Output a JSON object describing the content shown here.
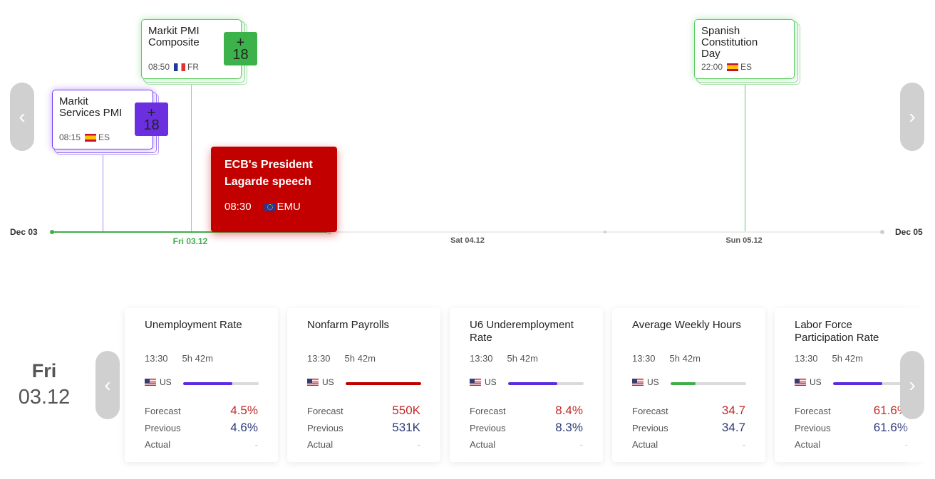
{
  "timeline": {
    "start_label": "Dec 03",
    "end_label": "Dec 05",
    "days": [
      {
        "label": "Fri 03.12",
        "active": true
      },
      {
        "label": "Sat 04.12",
        "active": false
      },
      {
        "label": "Sun 05.12",
        "active": false
      }
    ],
    "events": [
      {
        "title": "Markit\nServices PMI",
        "time": "08:15",
        "country": "ES",
        "more": "18",
        "plus": "+",
        "color": "purple"
      },
      {
        "title": "Markit PMI\nComposite",
        "time": "08:50",
        "country": "FR",
        "more": "18",
        "plus": "+",
        "color": "green"
      },
      {
        "title": "Spanish\nConstitution\nDay",
        "time": "22:00",
        "country": "ES",
        "color": "green"
      }
    ],
    "featured": {
      "title": "ECB's President\nLagarde speech",
      "time": "08:30",
      "country": "EMU"
    }
  },
  "nav": {
    "prev_icon": "chevron-left-icon",
    "next_icon": "chevron-right-icon"
  },
  "selected_day": {
    "weekday": "Fri",
    "date": "03.12"
  },
  "indicators": [
    {
      "title": "Unemployment Rate",
      "time": "13:30",
      "countdown": "5h 42m",
      "country": "US",
      "impact": 0.65,
      "impact_color": "#5b2be0",
      "forecast_label": "Forecast",
      "forecast": "4.5%",
      "previous_label": "Previous",
      "previous": "4.6%",
      "actual_label": "Actual",
      "actual": "-"
    },
    {
      "title": "Nonfarm Payrolls",
      "time": "13:30",
      "countdown": "5h 42m",
      "country": "US",
      "impact": 1.0,
      "impact_color": "#c00000",
      "forecast_label": "Forecast",
      "forecast": "550K",
      "previous_label": "Previous",
      "previous": "531K",
      "actual_label": "Actual",
      "actual": "-"
    },
    {
      "title": "U6 Underemployment Rate",
      "time": "13:30",
      "countdown": "5h 42m",
      "country": "US",
      "impact": 0.65,
      "impact_color": "#5b2be0",
      "forecast_label": "Forecast",
      "forecast": "8.4%",
      "previous_label": "Previous",
      "previous": "8.3%",
      "actual_label": "Actual",
      "actual": "-"
    },
    {
      "title": "Average Weekly Hours",
      "time": "13:30",
      "countdown": "5h 42m",
      "country": "US",
      "impact": 0.33,
      "impact_color": "#3fae49",
      "forecast_label": "Forecast",
      "forecast": "34.7",
      "previous_label": "Previous",
      "previous": "34.7",
      "actual_label": "Actual",
      "actual": "-"
    },
    {
      "title": "Labor Force Participation Rate",
      "time": "13:30",
      "countdown": "5h 42m",
      "country": "US",
      "impact": 0.65,
      "impact_color": "#5b2be0",
      "forecast_label": "Forecast",
      "forecast": "61.6%",
      "previous_label": "Previous",
      "previous": "61.6%",
      "actual_label": "Actual",
      "actual": "-"
    }
  ],
  "colors": {
    "accent_green": "#3fae49",
    "accent_purple": "#6b2fe0",
    "accent_red": "#c30000"
  }
}
